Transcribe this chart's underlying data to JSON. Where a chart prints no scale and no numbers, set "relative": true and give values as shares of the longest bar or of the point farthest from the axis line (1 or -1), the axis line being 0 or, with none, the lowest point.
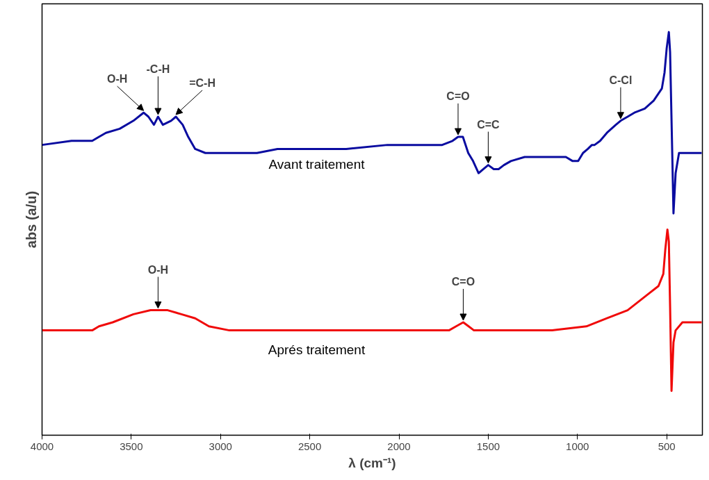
{
  "chart_data": {
    "type": "line",
    "relative": true,
    "xlabel": "λ (cm⁻¹)",
    "ylabel": "abs (a/u)",
    "xlim": [
      4000,
      300
    ],
    "xticks": [
      4000,
      3500,
      3000,
      2500,
      2000,
      1500,
      1000,
      500
    ],
    "grid": false,
    "legend": false,
    "marker": "none",
    "line_style": "solid",
    "series": [
      {
        "name": "Avant traitement",
        "color": "#0a0ca0",
        "x": [
          4000,
          3835,
          3719,
          3681,
          3642,
          3565,
          3488,
          3431,
          3404,
          3373,
          3350,
          3323,
          3277,
          3250,
          3212,
          3181,
          3142,
          3085,
          2950,
          2796,
          2681,
          2488,
          2296,
          2065,
          1912,
          1758,
          1700,
          1669,
          1642,
          1612,
          1585,
          1554,
          1527,
          1500,
          1469,
          1442,
          1412,
          1373,
          1296,
          1181,
          1104,
          1085,
          1065,
          1027,
          996,
          969,
          942,
          919,
          904,
          873,
          835,
          785,
          758,
          719,
          681,
          623,
          573,
          527,
          512,
          500,
          488,
          481,
          469,
          462,
          450,
          431,
          373,
          304
        ],
        "values": [
          0.72,
          0.73,
          0.73,
          0.74,
          0.75,
          0.76,
          0.78,
          0.8,
          0.79,
          0.77,
          0.79,
          0.77,
          0.78,
          0.79,
          0.77,
          0.74,
          0.71,
          0.7,
          0.7,
          0.7,
          0.71,
          0.71,
          0.71,
          0.72,
          0.72,
          0.72,
          0.73,
          0.74,
          0.74,
          0.7,
          0.68,
          0.65,
          0.66,
          0.67,
          0.66,
          0.66,
          0.67,
          0.68,
          0.69,
          0.69,
          0.69,
          0.69,
          0.69,
          0.68,
          0.68,
          0.7,
          0.71,
          0.72,
          0.72,
          0.73,
          0.75,
          0.77,
          0.78,
          0.79,
          0.8,
          0.81,
          0.83,
          0.86,
          0.9,
          0.96,
          1.0,
          0.95,
          0.7,
          0.55,
          0.65,
          0.7,
          0.7,
          0.7
        ]
      },
      {
        "name": "Aprés traitement",
        "color": "#f00a0a",
        "x": [
          4000,
          3719,
          3681,
          3604,
          3488,
          3392,
          3296,
          3219,
          3142,
          3065,
          2950,
          2681,
          2296,
          1912,
          1720,
          1680,
          1640,
          1610,
          1580,
          1527,
          1142,
          950,
          835,
          719,
          604,
          546,
          519,
          508,
          496,
          488,
          481,
          473,
          462,
          450,
          412,
          373,
          304
        ],
        "values": [
          0.26,
          0.26,
          0.27,
          0.28,
          0.3,
          0.31,
          0.31,
          0.3,
          0.29,
          0.27,
          0.26,
          0.26,
          0.26,
          0.26,
          0.26,
          0.27,
          0.28,
          0.27,
          0.26,
          0.26,
          0.26,
          0.27,
          0.29,
          0.31,
          0.35,
          0.37,
          0.4,
          0.46,
          0.51,
          0.48,
          0.32,
          0.11,
          0.23,
          0.26,
          0.28,
          0.28,
          0.28
        ]
      }
    ],
    "annotations": [
      {
        "text": "O-H",
        "x": 3431,
        "y": 0.8
      },
      {
        "text": "-C-H",
        "x": 3350,
        "y": 0.79
      },
      {
        "text": "=C-H",
        "x": 3250,
        "y": 0.79
      },
      {
        "text": "C=O",
        "x": 1669,
        "y": 0.74
      },
      {
        "text": "C=C",
        "x": 1500,
        "y": 0.67
      },
      {
        "text": "C-Cl",
        "x": 758,
        "y": 0.78
      },
      {
        "text": "O-H",
        "x": 3350,
        "y": 0.31
      },
      {
        "text": "C=O",
        "x": 1640,
        "y": 0.28
      }
    ]
  }
}
